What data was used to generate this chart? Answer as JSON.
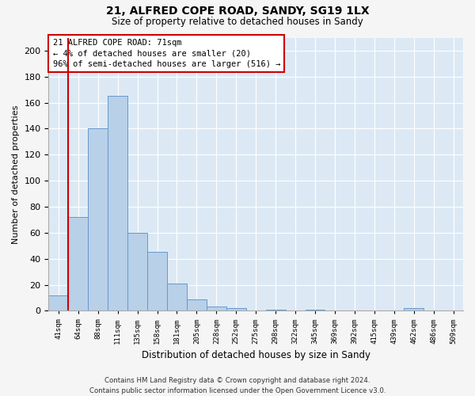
{
  "title1": "21, ALFRED COPE ROAD, SANDY, SG19 1LX",
  "title2": "Size of property relative to detached houses in Sandy",
  "xlabel": "Distribution of detached houses by size in Sandy",
  "ylabel": "Number of detached properties",
  "bar_color": "#b8d0e8",
  "bar_edge_color": "#6699cc",
  "background_color": "#dce9f5",
  "grid_color": "#ffffff",
  "annotation_box_color": "#cc0000",
  "red_line_color": "#cc0000",
  "categories": [
    "41sqm",
    "64sqm",
    "88sqm",
    "111sqm",
    "135sqm",
    "158sqm",
    "181sqm",
    "205sqm",
    "228sqm",
    "252sqm",
    "275sqm",
    "298sqm",
    "322sqm",
    "345sqm",
    "369sqm",
    "392sqm",
    "415sqm",
    "439sqm",
    "462sqm",
    "486sqm",
    "509sqm"
  ],
  "values": [
    12,
    72,
    140,
    165,
    60,
    45,
    21,
    9,
    3,
    2,
    0,
    1,
    0,
    1,
    0,
    0,
    0,
    0,
    2,
    0,
    0
  ],
  "ylim": [
    0,
    210
  ],
  "yticks": [
    0,
    20,
    40,
    60,
    80,
    100,
    120,
    140,
    160,
    180,
    200
  ],
  "red_line_x": 0.5,
  "annotation_text": "21 ALFRED COPE ROAD: 71sqm\n← 4% of detached houses are smaller (20)\n96% of semi-detached houses are larger (516) →",
  "footer1": "Contains HM Land Registry data © Crown copyright and database right 2024.",
  "footer2": "Contains public sector information licensed under the Open Government Licence v3.0.",
  "fig_facecolor": "#f5f5f5"
}
